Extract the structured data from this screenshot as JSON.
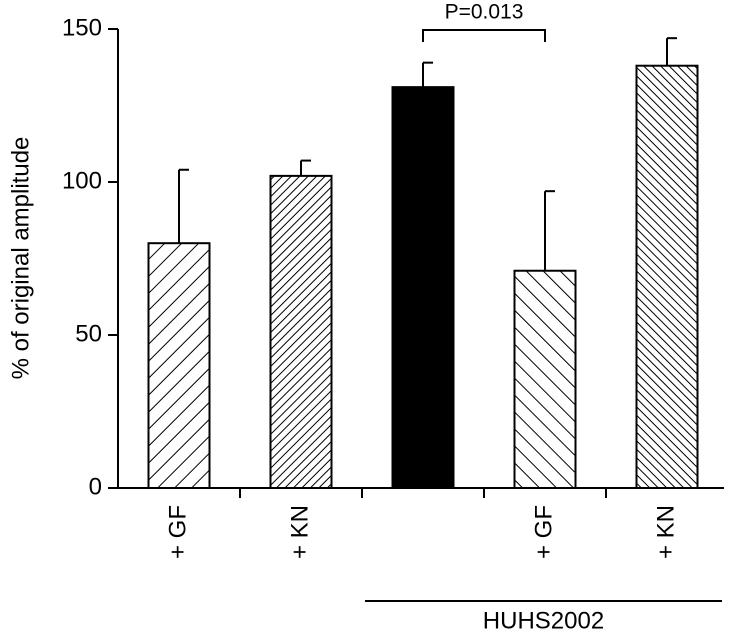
{
  "chart_data": {
    "type": "bar",
    "y_label": "% of original amplitude",
    "categories": [
      "+ GF",
      "+ KN",
      null,
      "+ GF",
      "+ KN"
    ],
    "values": [
      80,
      102,
      131,
      71,
      138
    ],
    "errors": [
      24,
      5,
      8,
      26,
      9
    ],
    "bar_styles": [
      "hatch-wide",
      "hatch-dense",
      "solid",
      "backhatch-wide",
      "backhatch-dense"
    ],
    "color": "#000000",
    "ylim": [
      0,
      150
    ],
    "yticks": [
      0,
      50,
      100,
      150
    ],
    "annotation": "P=0.013",
    "group_label": "HUHS2002"
  }
}
